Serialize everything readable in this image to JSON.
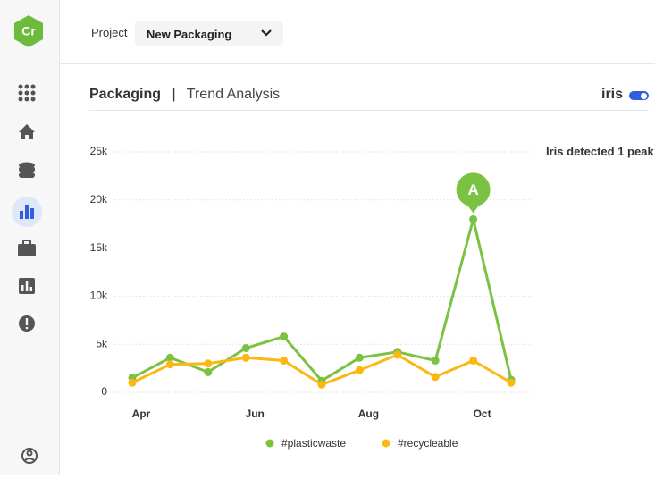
{
  "sidebar": {
    "logo": "Cr"
  },
  "header": {
    "project_label": "Project",
    "project_value": "New Packaging"
  },
  "title": {
    "main": "Packaging",
    "separator": "|",
    "sub": "Trend Analysis"
  },
  "toggle": {
    "label": "iris"
  },
  "insight": "Iris detected 1 peak",
  "chart_data": {
    "type": "line",
    "categories": [
      "Apr",
      null,
      null,
      "Jun",
      null,
      null,
      "Aug",
      null,
      null,
      "Oct",
      null
    ],
    "series": [
      {
        "name": "#plasticwaste",
        "color": "#7cc242",
        "values": [
          1500,
          3600,
          2100,
          4600,
          5800,
          1200,
          3600,
          4200,
          3300,
          18000,
          1300
        ]
      },
      {
        "name": "#recycleable",
        "color": "#fbb813",
        "values": [
          1000,
          2900,
          3000,
          3600,
          3300,
          800,
          2300,
          3900,
          1600,
          3300,
          1000
        ]
      }
    ],
    "ylim": [
      0,
      25000
    ],
    "yticks": [
      0,
      {
        "value": 5000,
        "label": "5k"
      },
      {
        "value": 10000,
        "label": "10k"
      },
      {
        "value": 15000,
        "label": "15k"
      },
      {
        "value": 20000,
        "label": "20k"
      },
      {
        "value": 25000,
        "label": "25k"
      }
    ],
    "grid": true,
    "annotations": [
      {
        "label": "A",
        "series": 0,
        "index": 9
      }
    ]
  }
}
